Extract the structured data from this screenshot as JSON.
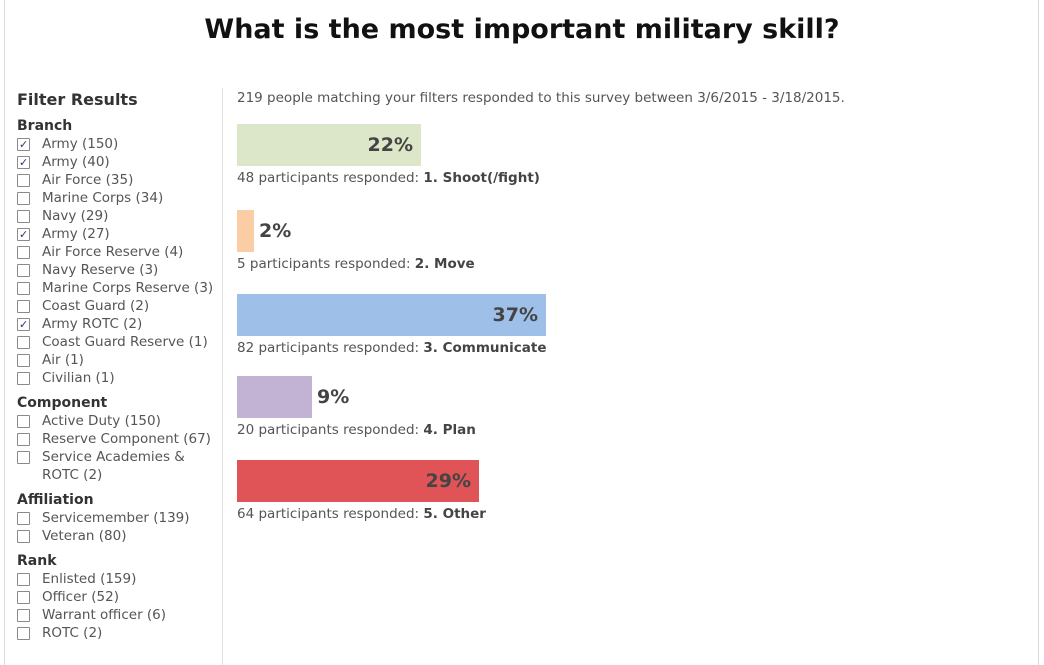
{
  "page": {
    "title": "What is the most important military skill?"
  },
  "filters": {
    "heading": "Filter Results",
    "groups": [
      {
        "label": "Branch",
        "options": [
          {
            "label": "Army (150)",
            "checked": true
          },
          {
            "label": "Army (40)",
            "checked": true
          },
          {
            "label": "Air Force (35)",
            "checked": false
          },
          {
            "label": "Marine Corps (34)",
            "checked": false
          },
          {
            "label": "Navy (29)",
            "checked": false
          },
          {
            "label": "Army (27)",
            "checked": true
          },
          {
            "label": "Air Force Reserve (4)",
            "checked": false
          },
          {
            "label": "Navy Reserve (3)",
            "checked": false
          },
          {
            "label": "Marine Corps Reserve (3)",
            "checked": false
          },
          {
            "label": "Coast Guard (2)",
            "checked": false
          },
          {
            "label": "Army ROTC (2)",
            "checked": true
          },
          {
            "label": "Coast Guard Reserve (1)",
            "checked": false
          },
          {
            "label": "Air (1)",
            "checked": false
          },
          {
            "label": "Civilian (1)",
            "checked": false
          }
        ]
      },
      {
        "label": "Component",
        "options": [
          {
            "label": "Active Duty (150)",
            "checked": false
          },
          {
            "label": "Reserve Component (67)",
            "checked": false
          },
          {
            "label": "Service Academies & ROTC (2)",
            "checked": false
          }
        ]
      },
      {
        "label": "Affiliation",
        "options": [
          {
            "label": "Servicemember (139)",
            "checked": false
          },
          {
            "label": "Veteran (80)",
            "checked": false
          }
        ]
      },
      {
        "label": "Rank",
        "options": [
          {
            "label": "Enlisted (159)",
            "checked": false
          },
          {
            "label": "Officer (52)",
            "checked": false
          },
          {
            "label": "Warrant officer (6)",
            "checked": false
          },
          {
            "label": "ROTC (2)",
            "checked": false
          }
        ]
      }
    ]
  },
  "results": {
    "summary": "219 people matching your filters responded to this survey between 3/6/2015 - 3/18/2015.",
    "responded_prefix": "participants responded:",
    "items": [
      {
        "percent": 22,
        "label": "22%",
        "count": "48",
        "answer": "1. Shoot(/fight)",
        "color": "#dce6c8"
      },
      {
        "percent": 2,
        "label": "2%",
        "count": "5",
        "answer": "2. Move",
        "color": "#fbcda4"
      },
      {
        "percent": 37,
        "label": "37%",
        "count": "82",
        "answer": "3. Communicate",
        "color": "#9dbfe8"
      },
      {
        "percent": 9,
        "label": "9%",
        "count": "20",
        "answer": "4. Plan",
        "color": "#c2b3d4"
      },
      {
        "percent": 29,
        "label": "29%",
        "count": "64",
        "answer": "5. Other",
        "color": "#e05457"
      }
    ]
  }
}
